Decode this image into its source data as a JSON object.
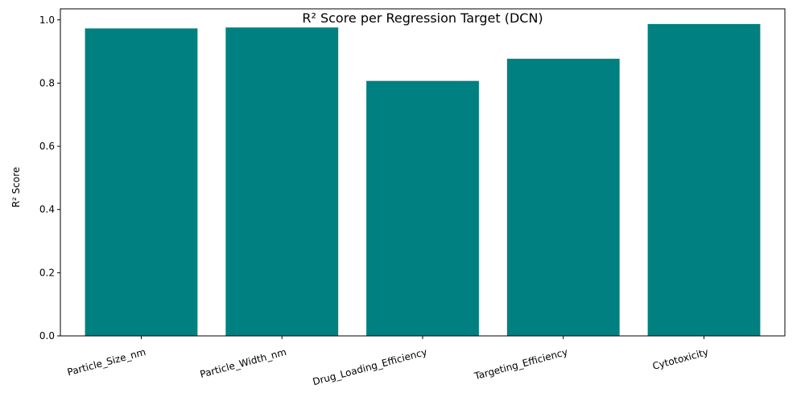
{
  "chart_data": {
    "type": "bar",
    "title": "R² Score per Regression Target (DCN)",
    "xlabel": "",
    "ylabel": "R² Score",
    "categories": [
      "Particle_Size_nm",
      "Particle_Width_nm",
      "Drug_Loading_Efficiency",
      "Targeting_Efficiency",
      "Cytotoxicity"
    ],
    "values": [
      0.973,
      0.976,
      0.807,
      0.877,
      0.987
    ],
    "ylim": [
      0,
      1.035
    ],
    "yticks": [
      0.0,
      0.2,
      0.4,
      0.6,
      0.8,
      1.0
    ],
    "ytick_labels": [
      "0.0",
      "0.2",
      "0.4",
      "0.6",
      "0.8",
      "1.0"
    ],
    "bar_color": "#008080",
    "grid": false,
    "legend": "none"
  }
}
